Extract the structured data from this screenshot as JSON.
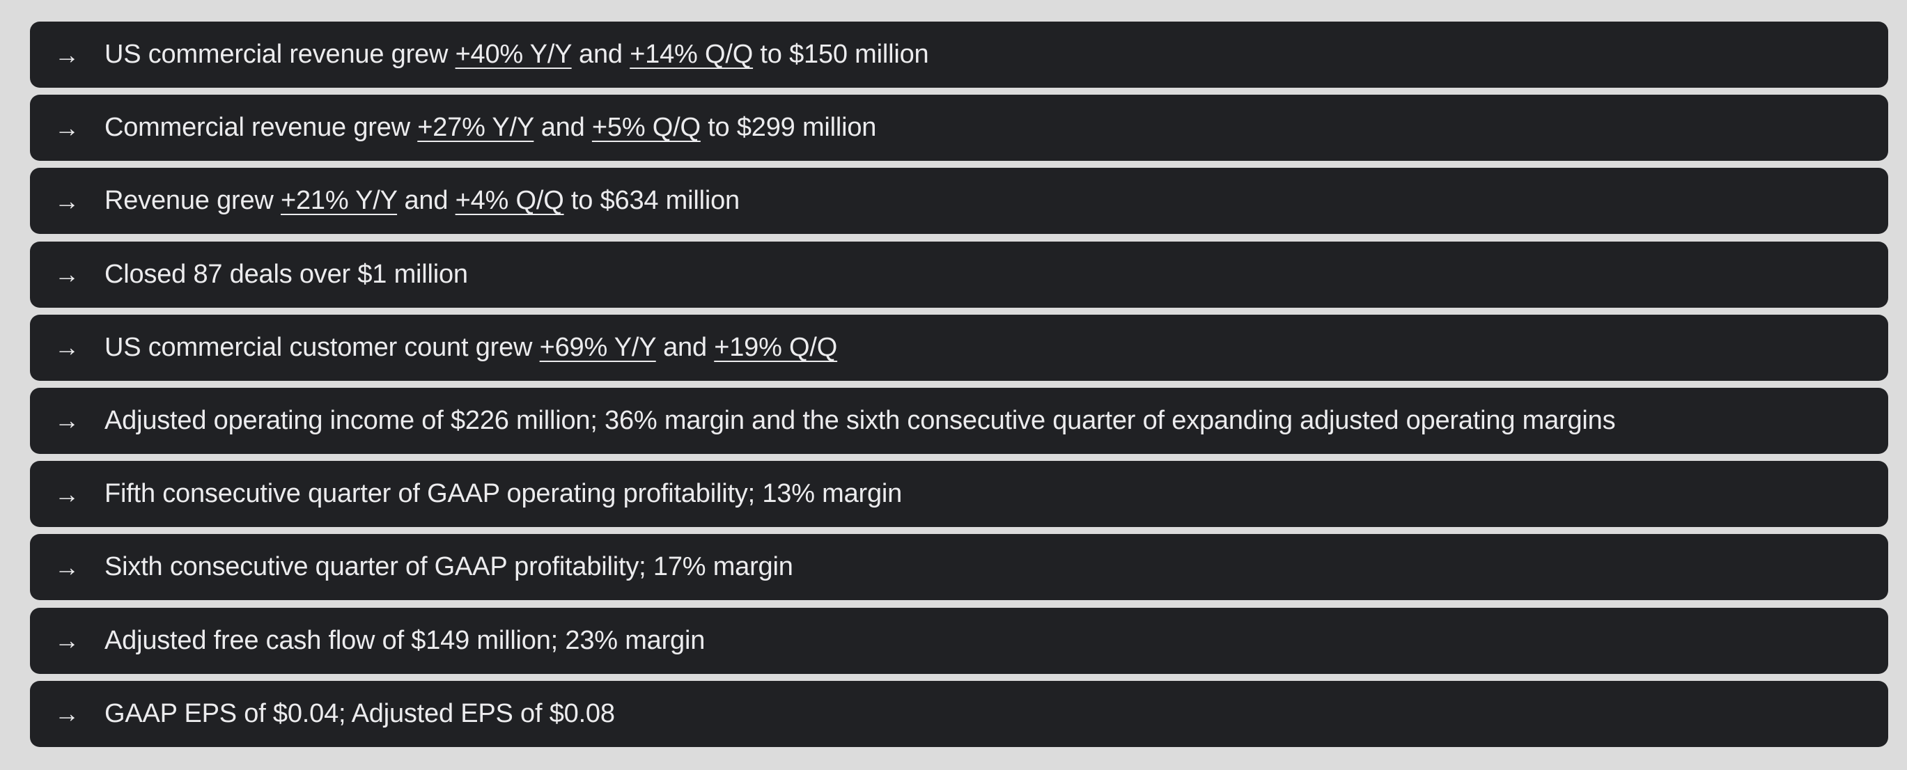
{
  "highlights": [
    {
      "parts": [
        {
          "text": "US commercial revenue grew ",
          "underline": false
        },
        {
          "text": "+40% Y/Y",
          "underline": true
        },
        {
          "text": " and ",
          "underline": false
        },
        {
          "text": "+14% Q/Q",
          "underline": true
        },
        {
          "text": " to $150 million",
          "underline": false
        }
      ]
    },
    {
      "parts": [
        {
          "text": "Commercial revenue grew ",
          "underline": false
        },
        {
          "text": "+27% Y/Y",
          "underline": true
        },
        {
          "text": " and ",
          "underline": false
        },
        {
          "text": "+5% Q/Q",
          "underline": true
        },
        {
          "text": " to $299 million",
          "underline": false
        }
      ]
    },
    {
      "parts": [
        {
          "text": "Revenue grew ",
          "underline": false
        },
        {
          "text": "+21% Y/Y",
          "underline": true
        },
        {
          "text": " and ",
          "underline": false
        },
        {
          "text": "+4% Q/Q",
          "underline": true
        },
        {
          "text": " to $634 million",
          "underline": false
        }
      ]
    },
    {
      "parts": [
        {
          "text": "Closed 87 deals over $1 million",
          "underline": false
        }
      ]
    },
    {
      "parts": [
        {
          "text": "US commercial customer count grew ",
          "underline": false
        },
        {
          "text": "+69% Y/Y",
          "underline": true
        },
        {
          "text": " and ",
          "underline": false
        },
        {
          "text": "+19% Q/Q",
          "underline": true
        }
      ]
    },
    {
      "parts": [
        {
          "text": "Adjusted operating income of $226 million; 36% margin and the sixth consecutive quarter of expanding adjusted operating margins",
          "underline": false
        }
      ]
    },
    {
      "parts": [
        {
          "text": "Fifth consecutive quarter of GAAP operating profitability; 13% margin",
          "underline": false
        }
      ]
    },
    {
      "parts": [
        {
          "text": "Sixth consecutive quarter of GAAP profitability; 17% margin",
          "underline": false
        }
      ]
    },
    {
      "parts": [
        {
          "text": "Adjusted free cash flow of $149 million; 23% margin",
          "underline": false
        }
      ]
    },
    {
      "parts": [
        {
          "text": "GAAP EPS of $0.04; Adjusted EPS of $0.08",
          "underline": false
        }
      ]
    }
  ],
  "arrow_glyph": "→",
  "colors": {
    "background": "#dcdcdc",
    "row": "#202124",
    "text": "#ececee"
  }
}
